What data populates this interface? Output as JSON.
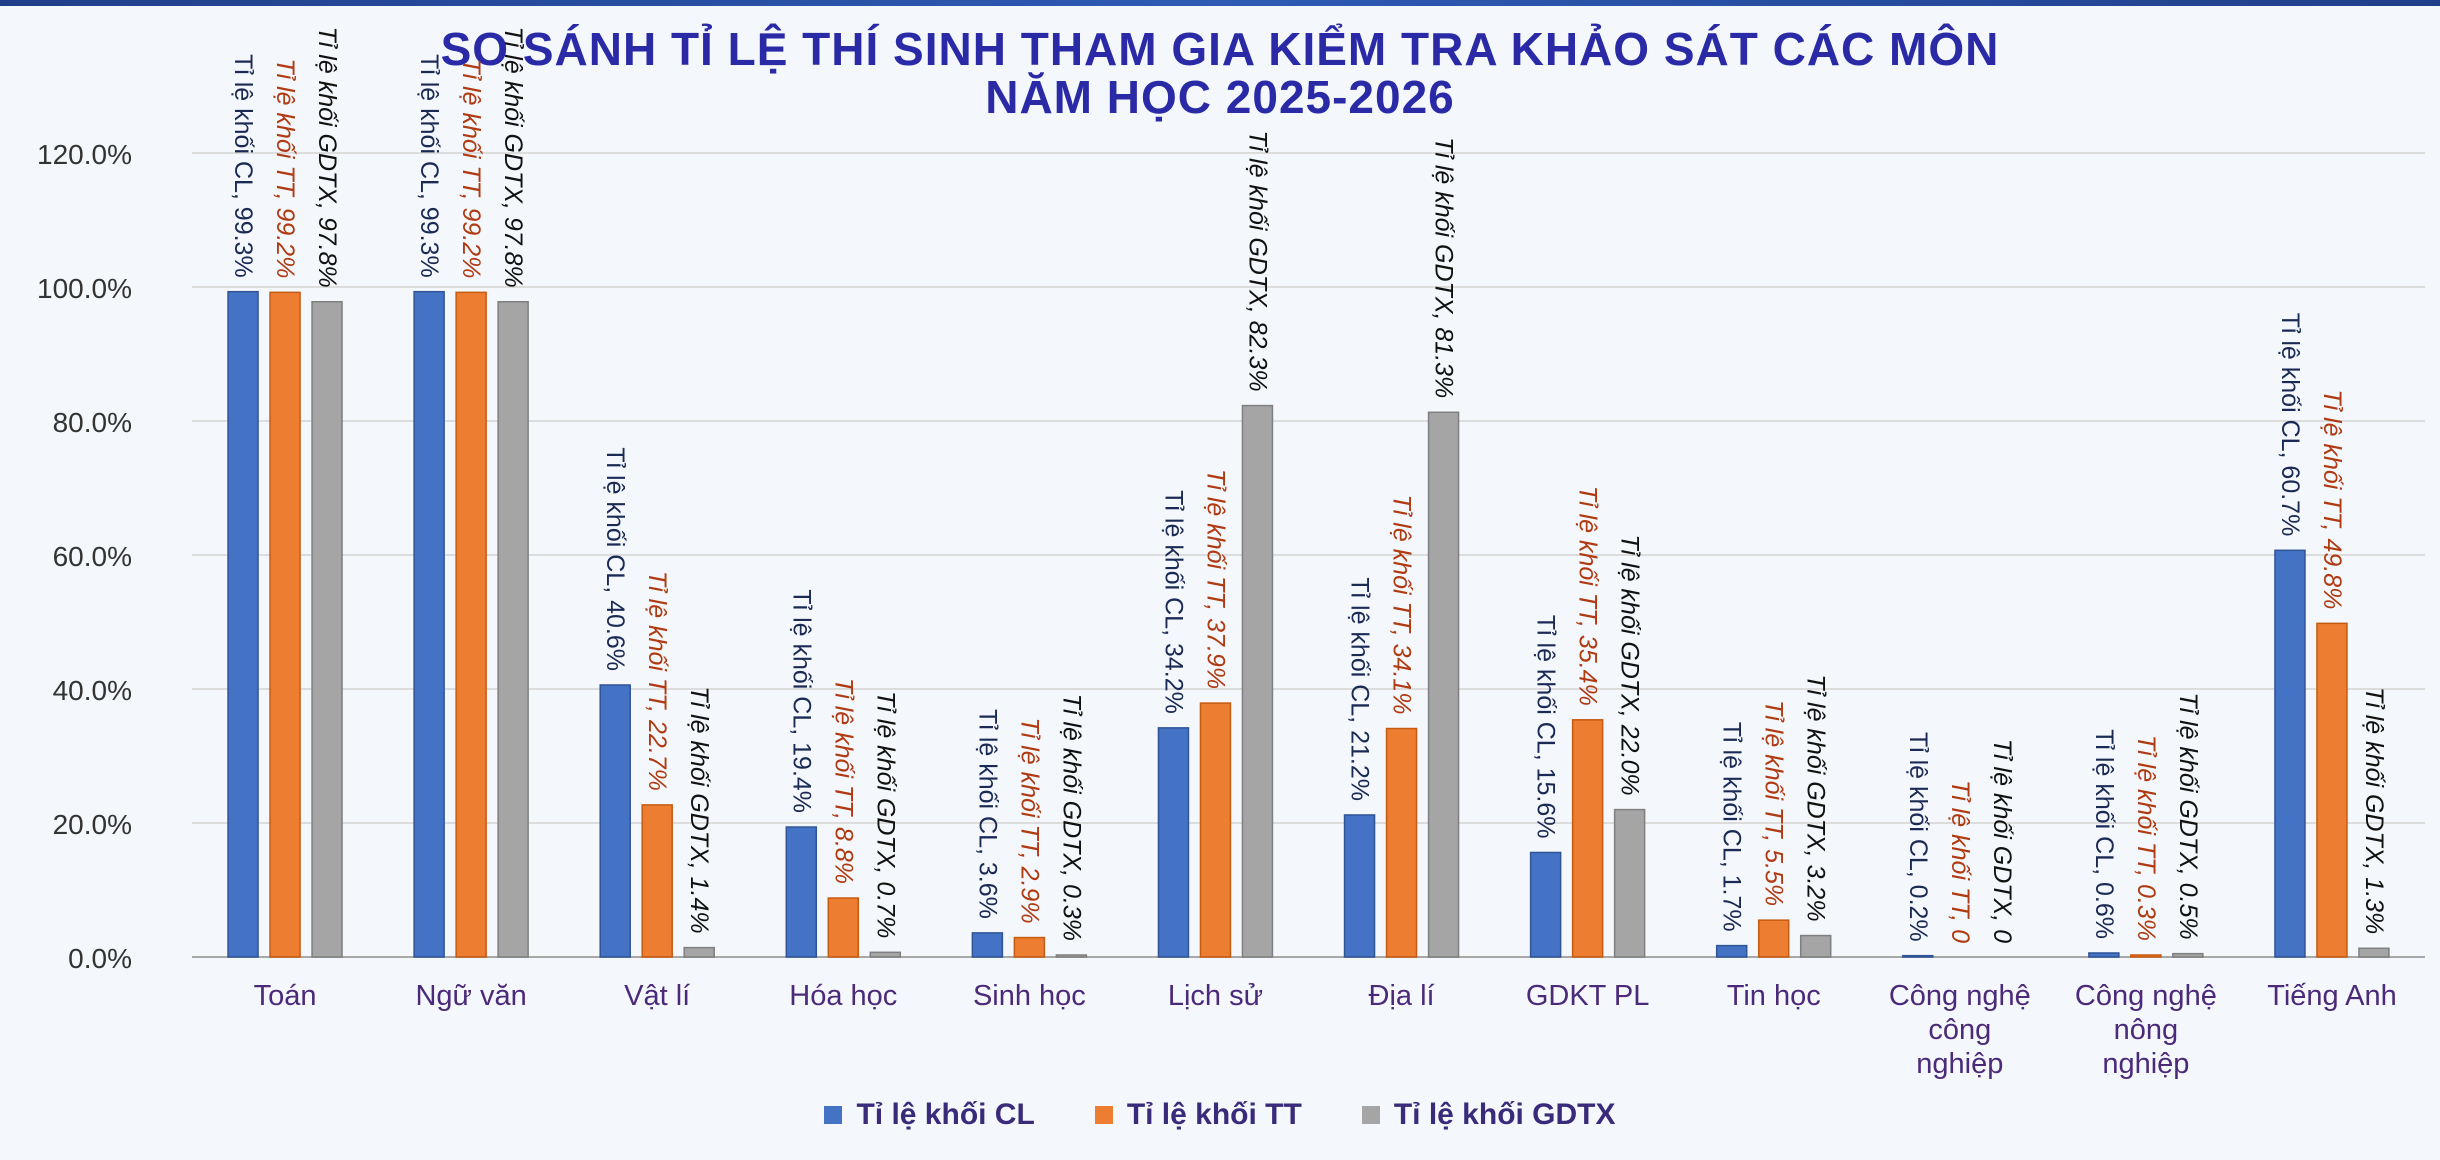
{
  "chart_data": {
    "type": "bar",
    "title": "SO SÁNH TỈ LỆ THÍ SINH THAM GIA KIỂM TRA KHẢO SÁT CÁC MÔN",
    "subtitle": "NĂM HỌC 2025-2026",
    "categories": [
      [
        "Toán"
      ],
      [
        "Ngữ văn"
      ],
      [
        "Vật lí"
      ],
      [
        "Hóa học"
      ],
      [
        "Sinh học"
      ],
      [
        "Lịch sử"
      ],
      [
        "Địa lí"
      ],
      [
        "GDKT PL"
      ],
      [
        "Tin học"
      ],
      [
        "Công nghệ",
        "công",
        "nghiệp"
      ],
      [
        "Công nghệ",
        "nông",
        "nghiệp"
      ],
      [
        "Tiếng Anh"
      ]
    ],
    "series": [
      {
        "name": "Tỉ lệ khối CL",
        "color": "#4472c4",
        "values": [
          99.3,
          99.3,
          40.6,
          19.4,
          3.6,
          34.2,
          21.2,
          15.6,
          1.7,
          0.2,
          0.6,
          60.7
        ],
        "labels": [
          "Tỉ lệ khối CL, 99.3%",
          "Tỉ lệ khối CL, 99.3%",
          "Tỉ lệ khối CL, 40.6%",
          "Tỉ lệ khối CL, 19.4%",
          "Tỉ lệ khối CL, 3.6%",
          "Tỉ lệ khối CL, 34.2%",
          "Tỉ lệ khối CL, 21.2%",
          "Tỉ lệ khối CL, 15.6%",
          "Tỉ lệ khối CL, 1.7%",
          "Tỉ lệ khối CL, 0.2%",
          "Tỉ lệ khối CL, 0.6%",
          "Tỉ lệ khối CL, 60.7%"
        ]
      },
      {
        "name": "Tỉ lệ khối TT",
        "color": "#ed7d31",
        "values": [
          99.2,
          99.2,
          22.7,
          8.8,
          2.9,
          37.9,
          34.1,
          35.4,
          5.5,
          0,
          0.3,
          49.8
        ],
        "labels": [
          "Tỉ lệ khối TT, 99.2%",
          "Tỉ lệ khối TT, 99.2%",
          "Tỉ lệ khối TT, 22.7%",
          "Tỉ lệ khối TT, 8.8%",
          "Tỉ lệ khối TT, 2.9%",
          "Tỉ lệ khối TT, 37.9%",
          "Tỉ lệ khối TT, 34.1%",
          "Tỉ lệ khối TT, 35.4%",
          "Tỉ lệ khối TT, 5.5%",
          "Tỉ lệ khối TT, 0",
          "Tỉ lệ khối TT, 0.3%",
          "Tỉ lệ khối TT, 49.8%"
        ]
      },
      {
        "name": "Tỉ lệ khối GDTX",
        "color": "#a5a5a5",
        "values": [
          97.8,
          97.8,
          1.4,
          0.7,
          0.3,
          82.3,
          81.3,
          22.0,
          3.2,
          0,
          0.5,
          1.3
        ],
        "labels": [
          "Tỉ lệ khối GDTX, 97.8%",
          "Tỉ lệ khối GDTX, 97.8%",
          "Tỉ lệ khối GDTX, 1.4%",
          "Tỉ lệ khối GDTX, 0.7%",
          "Tỉ lệ khối GDTX, 0.3%",
          "Tỉ lệ khối GDTX, 82.3%",
          "Tỉ lệ khối GDTX, 81.3%",
          "Tỉ lệ khối GDTX, 22.0%",
          "Tỉ lệ khối GDTX, 3.2%",
          "Tỉ lệ khối GDTX, 0",
          "Tỉ lệ khối GDTX, 0.5%",
          "Tỉ lệ khối GDTX, 1.3%"
        ]
      }
    ],
    "label_colors": [
      "#1a2a55",
      "#b03a12",
      "#111111"
    ],
    "ylim": [
      0,
      120
    ],
    "yticks": [
      "0.0%",
      "20.0%",
      "40.0%",
      "60.0%",
      "80.0%",
      "100.0%",
      "120.0%"
    ],
    "grid": true,
    "legend_position": "bottom"
  }
}
